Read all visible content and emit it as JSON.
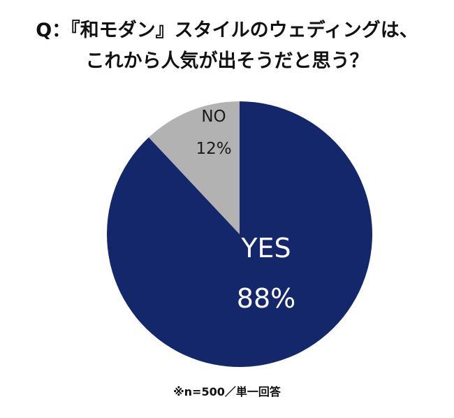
{
  "title": {
    "line1": "Q：『和モダン』スタイルのウェディングは、",
    "line2": "これから人気が出そうだと思う？"
  },
  "chart_data": {
    "type": "pie",
    "categories": [
      "YES",
      "NO"
    ],
    "values": [
      88,
      12
    ],
    "value_labels": [
      "88%",
      "12%"
    ],
    "colors": [
      "#14276b",
      "#b2b2b2"
    ],
    "label_colors": [
      "#ffffff",
      "#1a1a1a"
    ],
    "legend": "none"
  },
  "note": "※n=500／単一回答"
}
